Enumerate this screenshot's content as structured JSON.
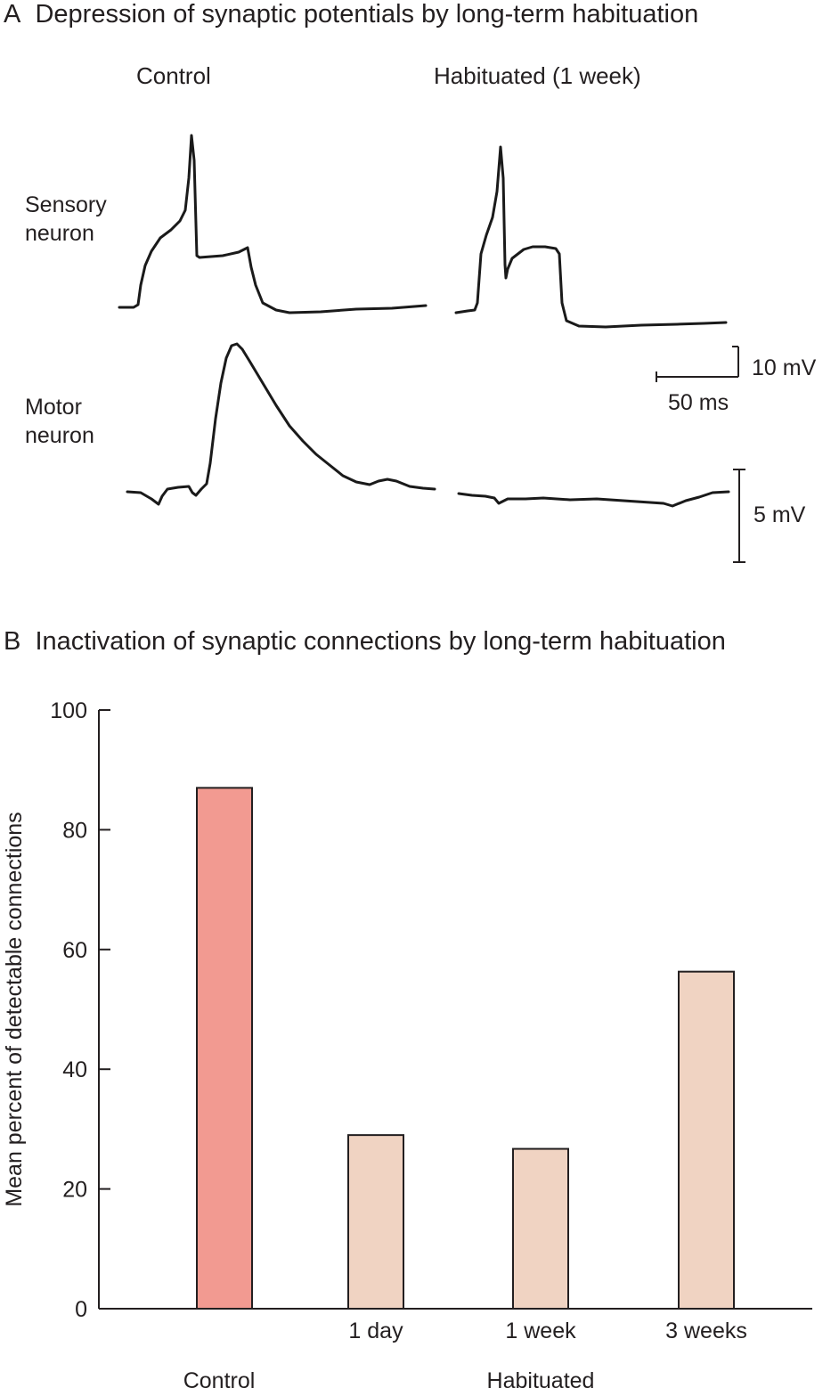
{
  "panel_a": {
    "letter": "A",
    "title": "Depression of synaptic potentials by long-term habituation",
    "columns": [
      "Control",
      "Habituated (1 week)"
    ],
    "rows": {
      "sensory": [
        "Sensory",
        "neuron"
      ],
      "motor": [
        "Motor",
        "neuron"
      ]
    },
    "scale_bars": {
      "time": "50 ms",
      "sensory_voltage": "10 mV",
      "motor_voltage": "5 mV"
    }
  },
  "panel_b": {
    "letter": "B",
    "title": "Inactivation of synaptic connections by long-term habituation"
  },
  "chart_data": {
    "type": "bar",
    "title": "Inactivation of synaptic connections by long-term habituation",
    "ylabel": "Mean percent of detectable connections",
    "xlabel": "",
    "ylim": [
      0,
      100
    ],
    "yticks": [
      0,
      20,
      40,
      60,
      80,
      100
    ],
    "categories": [
      "Control",
      "1 day",
      "1 week",
      "3 weeks"
    ],
    "tick_labels": [
      "",
      "1 day",
      "1 week",
      "3 weeks"
    ],
    "group_labels": [
      "Control",
      "Habituated"
    ],
    "values": [
      87,
      29,
      26.7,
      56.3
    ],
    "colors": [
      "#f29a91",
      "#f0d3c2",
      "#f0d3c2",
      "#f0d3c2"
    ],
    "grid": false
  }
}
